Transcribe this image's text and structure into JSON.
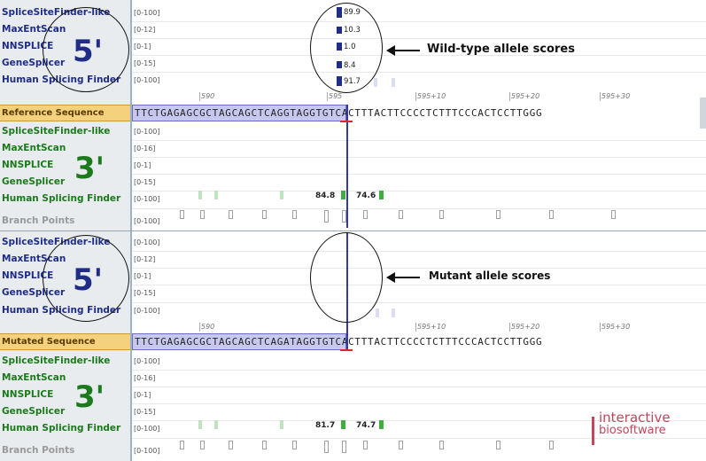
{
  "tracks_5prime": [
    {
      "name": "SpliceSiteFinder-like",
      "range": "[0-100]"
    },
    {
      "name": "MaxEntScan",
      "range": "[0-12]"
    },
    {
      "name": "NNSPLICE",
      "range": "[0-1]"
    },
    {
      "name": "GeneSplicer",
      "range": "[0-15]"
    },
    {
      "name": "Human Splicing Finder",
      "range": "[0-100]"
    }
  ],
  "tracks_3prime_ref": [
    {
      "name": "SpliceSiteFinder-like",
      "range": "[0-100]"
    },
    {
      "name": "MaxEntScan",
      "range": "[0-16]"
    },
    {
      "name": "NNSPLICE",
      "range": "[0-1]"
    },
    {
      "name": "GeneSplicer",
      "range": "[0-15]"
    },
    {
      "name": "Human Splicing Finder",
      "range": "[0-100]"
    },
    {
      "name": "Branch Points",
      "range": "[0-100]"
    }
  ],
  "tracks_5prime_mut": [
    {
      "name": "SpliceSiteFinder-like",
      "range": "[0-100]"
    },
    {
      "name": "MaxEntScan",
      "range": "[0-12]"
    },
    {
      "name": "NNSPLICE",
      "range": "[0-1]"
    },
    {
      "name": "GeneSplicer",
      "range": "[0-15]"
    },
    {
      "name": "Human Splicing Finder",
      "range": "[0-100]"
    }
  ],
  "tracks_3prime_mut": [
    {
      "name": "SpliceSiteFinder-like",
      "range": "[0-100]"
    },
    {
      "name": "MaxEntScan",
      "range": "[0-16]"
    },
    {
      "name": "NNSPLICE",
      "range": "[0-1]"
    },
    {
      "name": "GeneSplicer",
      "range": "[0-15]"
    },
    {
      "name": "Human Splicing Finder",
      "range": "[0-100]"
    },
    {
      "name": "Branch Points",
      "range": "[0-100]"
    }
  ],
  "wt_scores": [
    "89.9",
    "10.3",
    "1.0",
    "8.4",
    "91.7"
  ],
  "ruler_labels": [
    "590",
    "595",
    "595+10",
    "595+20",
    "595+30"
  ],
  "reference": {
    "label": "Reference Sequence",
    "sequence": "TTCTGAGAGCGCTAGCAGCTCAGGTAGGTGTCACTTTACTTCCCCTCTTTCCCACTCCTTGGG"
  },
  "mutated": {
    "label": "Mutated Sequence",
    "sequence": "TTCTGAGAGCGCTAGCAGCTCAGATAGGTGTCACTTTACTTCCCCTCTTTCCCACTCCTTGGG"
  },
  "ref_3prime_hsf_scores": [
    "84.8",
    "74.6"
  ],
  "mut_3prime_hsf_scores": [
    "81.7",
    "74.7"
  ],
  "section_marks": {
    "five": "5'",
    "three": "3'"
  },
  "annotations": {
    "wildtype": "Wild-type allele scores",
    "mutant": "Mutant allele scores"
  },
  "brand": {
    "line1": "interactive",
    "line2": "biosoftware"
  },
  "colors": {
    "label_blue": "#1f2d86",
    "label_green": "#1c7a1c",
    "seq_label_bg": "#f4d17c",
    "highlight": "#c7c8ef"
  }
}
